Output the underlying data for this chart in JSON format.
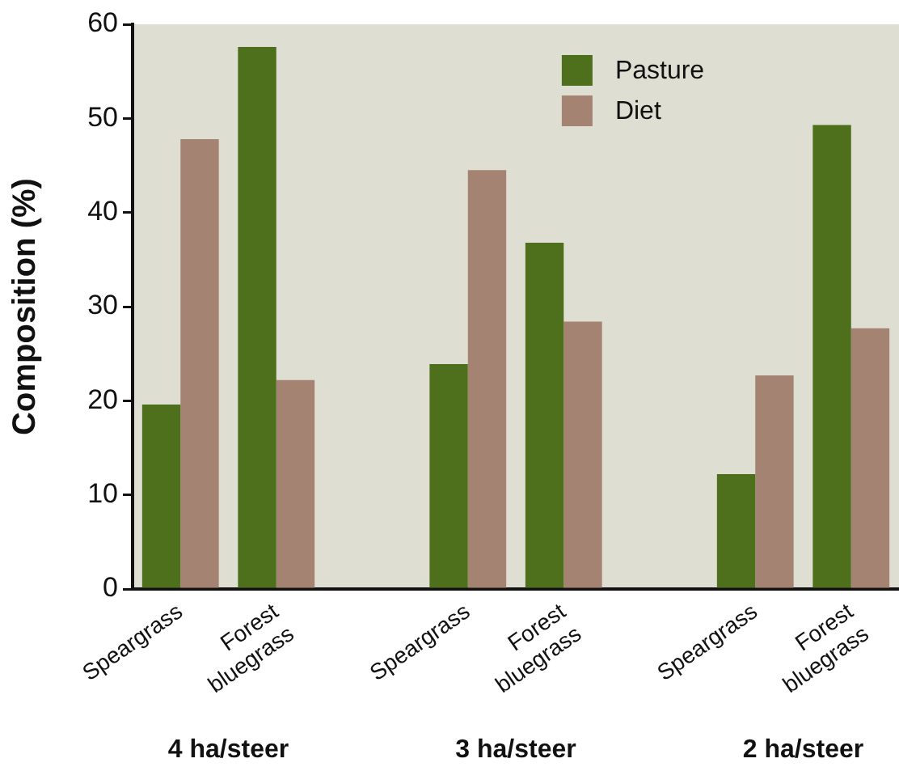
{
  "chart_data": {
    "type": "bar",
    "ylabel": "Composition (%)",
    "categories": [
      "Speargrass",
      "Forest bluegrass",
      null,
      "Speargrass",
      "Forest bluegrass",
      null,
      "Speargrass",
      "Forest bluegrass"
    ],
    "series": [
      {
        "name": "Pasture",
        "color": "#4e6f1c",
        "values": [
          19.6,
          57.6,
          null,
          23.9,
          36.8,
          null,
          12.2,
          49.3
        ]
      },
      {
        "name": "Diet",
        "color": "#a58373",
        "values": [
          47.8,
          22.2,
          null,
          44.5,
          28.4,
          null,
          22.7,
          27.7
        ]
      }
    ],
    "ylim": [
      0,
      60
    ],
    "yticks": [
      0,
      10,
      20,
      30,
      40,
      50,
      60
    ],
    "legend": "top right",
    "annotations": [
      "4 ha/steer",
      "3 ha/steer",
      "2 ha/steer"
    ]
  }
}
